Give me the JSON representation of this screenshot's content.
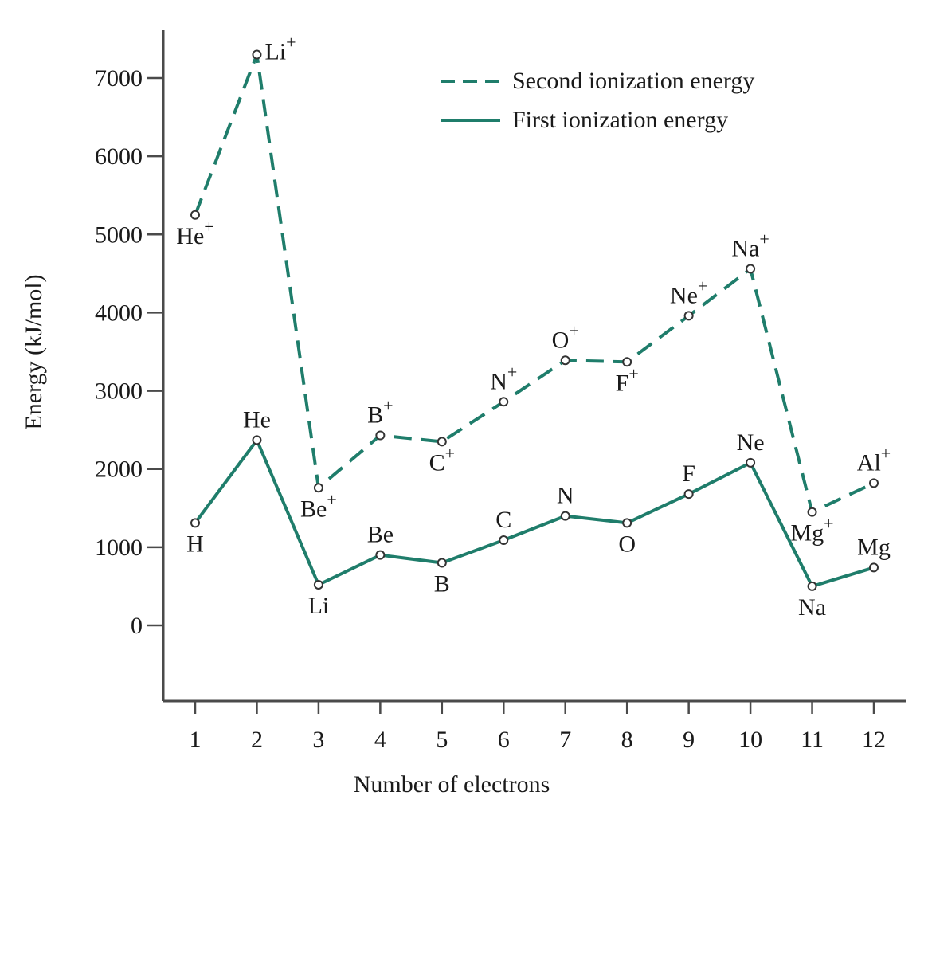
{
  "colors": {
    "series": "#1f7d6b",
    "axis": "#4a4a4a",
    "text": "#1a1a1a"
  },
  "chart_data": {
    "type": "line",
    "title": "",
    "xlabel": "Number of electrons",
    "ylabel": "Energy (kJ/mol)",
    "x": [
      1,
      2,
      3,
      4,
      5,
      6,
      7,
      8,
      9,
      10,
      11,
      12
    ],
    "x_tick_labels": [
      "1",
      "2",
      "3",
      "4",
      "5",
      "6",
      "7",
      "8",
      "9",
      "10",
      "11",
      "12"
    ],
    "y_ticks": [
      0,
      1000,
      2000,
      3000,
      4000,
      5000,
      6000,
      7000
    ],
    "y_tick_labels": [
      "0",
      "1000",
      "2000",
      "3000",
      "4000",
      "5000",
      "6000",
      "7000"
    ],
    "xlim": [
      0.5,
      12.5
    ],
    "ylim": [
      -1000,
      7600
    ],
    "grid": false,
    "legend_position": "top-right",
    "series": [
      {
        "name": "Second ionization energy",
        "style": "dashed",
        "values": [
          5250,
          7300,
          1760,
          2430,
          2350,
          2860,
          3390,
          3370,
          3960,
          4560,
          1450,
          1820
        ],
        "point_labels": [
          "He",
          "Li",
          "Be",
          "B",
          "C",
          "N",
          "O",
          "F",
          "Ne",
          "Na",
          "Mg",
          "Al"
        ],
        "point_label_suffix": "+",
        "label_placement": [
          "below",
          "right",
          "below",
          "above",
          "below",
          "above",
          "above",
          "below",
          "above",
          "above",
          "below",
          "above"
        ]
      },
      {
        "name": "First ionization energy",
        "style": "solid",
        "values": [
          1310,
          2370,
          520,
          900,
          800,
          1090,
          1400,
          1310,
          1680,
          2080,
          500,
          740
        ],
        "point_labels": [
          "H",
          "He",
          "Li",
          "Be",
          "B",
          "C",
          "N",
          "O",
          "F",
          "Ne",
          "Na",
          "Mg"
        ],
        "point_label_suffix": "",
        "label_placement": [
          "below",
          "above",
          "below",
          "above",
          "below",
          "above",
          "above",
          "below",
          "above",
          "above",
          "below",
          "above"
        ]
      }
    ]
  }
}
